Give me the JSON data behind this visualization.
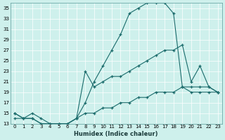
{
  "xlabel": "Humidex (Indice chaleur)",
  "bg_color": "#cef0ec",
  "line_color": "#1a6b6b",
  "xlim": [
    -0.5,
    23.5
  ],
  "ylim": [
    13,
    36
  ],
  "yticks": [
    13,
    15,
    17,
    19,
    21,
    23,
    25,
    27,
    29,
    31,
    33,
    35
  ],
  "xticks": [
    0,
    1,
    2,
    3,
    4,
    5,
    6,
    7,
    8,
    9,
    10,
    11,
    12,
    13,
    14,
    15,
    16,
    17,
    18,
    19,
    20,
    21,
    22,
    23
  ],
  "line1_x": [
    0,
    1,
    2,
    3,
    4,
    5,
    6,
    7,
    8,
    9,
    10,
    11,
    12,
    13,
    14,
    15,
    16,
    17,
    18,
    19,
    20,
    21,
    22,
    23
  ],
  "line1_y": [
    15,
    14,
    15,
    14,
    13,
    13,
    13,
    14,
    17,
    21,
    24,
    27,
    30,
    34,
    35,
    36,
    36,
    36,
    34,
    20,
    19,
    19,
    19,
    19
  ],
  "line2_x": [
    0,
    1,
    2,
    3,
    4,
    5,
    6,
    7,
    8,
    9,
    10,
    11,
    12,
    13,
    14,
    15,
    16,
    17,
    18,
    19,
    20,
    21,
    22,
    23
  ],
  "line2_y": [
    14,
    14,
    14,
    13,
    13,
    13,
    13,
    14,
    23,
    20,
    21,
    22,
    22,
    23,
    24,
    25,
    26,
    27,
    27,
    28,
    21,
    24,
    20,
    19
  ],
  "line3_x": [
    0,
    1,
    2,
    3,
    4,
    5,
    6,
    7,
    8,
    9,
    10,
    11,
    12,
    13,
    14,
    15,
    16,
    17,
    18,
    19,
    20,
    21,
    22,
    23
  ],
  "line3_y": [
    15,
    14,
    14,
    13,
    13,
    13,
    13,
    14,
    15,
    15,
    16,
    16,
    17,
    17,
    18,
    18,
    19,
    19,
    19,
    20,
    20,
    20,
    20,
    19
  ]
}
